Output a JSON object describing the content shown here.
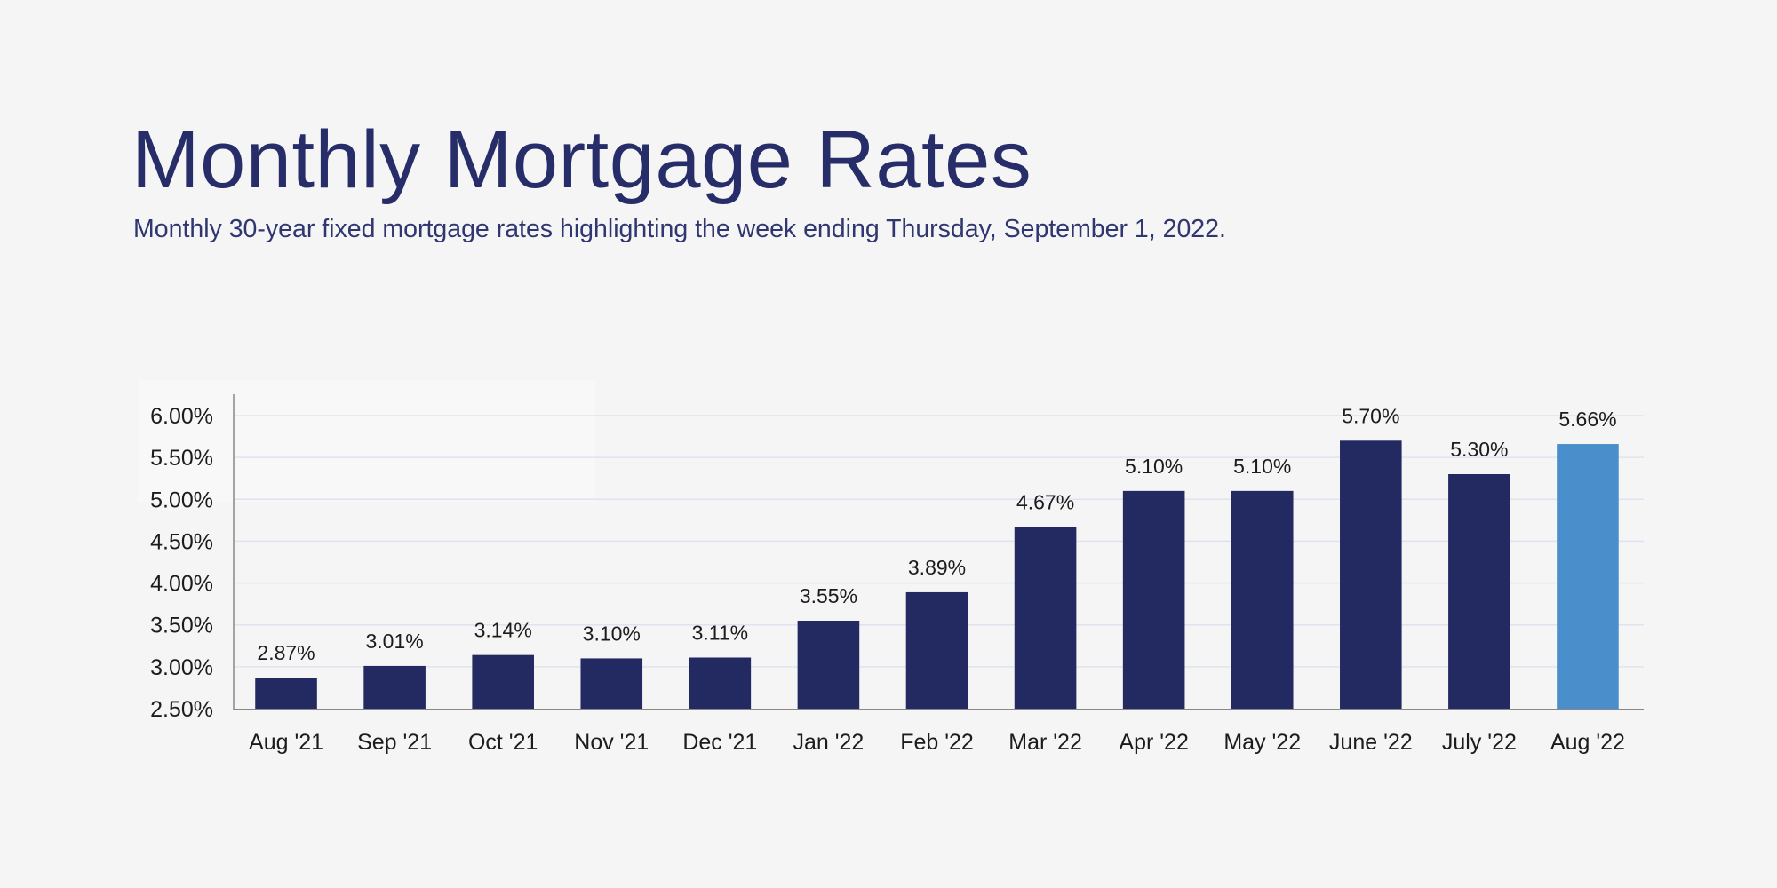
{
  "chart_data": {
    "type": "bar",
    "title": "Monthly Mortgage Rates",
    "subtitle": "Monthly 30-year fixed mortgage rates highlighting the week ending Thursday, September 1, 2022.",
    "categories": [
      "Aug '21",
      "Sep '21",
      "Oct '21",
      "Nov '21",
      "Dec '21",
      "Jan '22",
      "Feb '22",
      "Mar '22",
      "Apr '22",
      "May '22",
      "June '22",
      "July '22",
      "Aug '22"
    ],
    "values": [
      2.87,
      3.01,
      3.14,
      3.1,
      3.11,
      3.55,
      3.89,
      4.67,
      5.1,
      5.1,
      5.7,
      5.3,
      5.66
    ],
    "value_labels": [
      "2.87%",
      "3.01%",
      "3.14%",
      "3.10%",
      "3.11%",
      "3.55%",
      "3.89%",
      "4.67%",
      "5.10%",
      "5.10%",
      "5.70%",
      "5.30%",
      "5.66%"
    ],
    "yticks": [
      2.5,
      3.0,
      3.5,
      4.0,
      4.5,
      5.0,
      5.5,
      6.0
    ],
    "ytick_labels": [
      "2.50%",
      "3.00%",
      "3.50%",
      "4.00%",
      "4.50%",
      "5.00%",
      "5.50%",
      "6.00%"
    ],
    "ylim": [
      2.5,
      6.0
    ],
    "xlabel": "",
    "ylabel": "",
    "grid": true,
    "colors": {
      "bar": "#232a62",
      "highlight": "#4a8fcb",
      "highlight_index_category": "Aug '22",
      "title": "#262d68",
      "grid": "#dfe3ef"
    }
  }
}
